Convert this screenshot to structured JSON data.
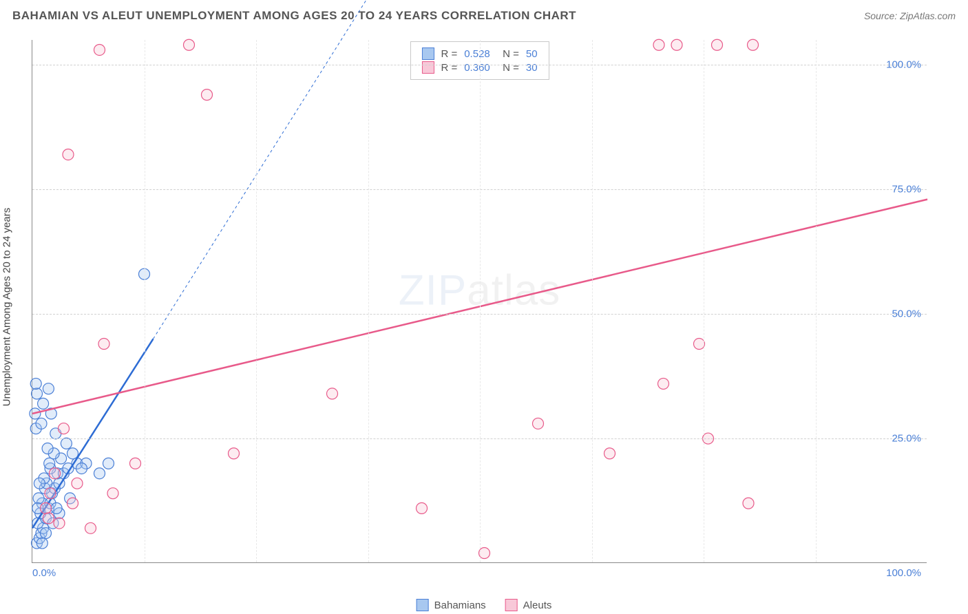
{
  "title": "BAHAMIAN VS ALEUT UNEMPLOYMENT AMONG AGES 20 TO 24 YEARS CORRELATION CHART",
  "source_label": "Source: ZipAtlas.com",
  "y_axis_label": "Unemployment Among Ages 20 to 24 years",
  "watermark_bold": "ZIP",
  "watermark_thin": "atlas",
  "chart": {
    "type": "scatter",
    "xlim": [
      0,
      100
    ],
    "ylim": [
      0,
      105
    ],
    "xticks": [
      0,
      100
    ],
    "xtick_labels": [
      "0.0%",
      "100.0%"
    ],
    "yticks": [
      25,
      50,
      75,
      100
    ],
    "ytick_labels": [
      "25.0%",
      "50.0%",
      "75.0%",
      "100.0%"
    ],
    "vgrid_positions": [
      12.5,
      25,
      37.5,
      50,
      62.5,
      75,
      87.5
    ],
    "background_color": "#ffffff",
    "grid_color": "#d0d0d0",
    "axis_color": "#888888",
    "marker_radius": 8,
    "series": [
      {
        "name": "Bahamians",
        "fill": "#a8c8f0",
        "stroke": "#4a7fd6",
        "trend_stroke": "#2d6cd4",
        "trend": {
          "x1": 0,
          "y1": 7,
          "x2": 13.5,
          "y2": 45,
          "dash_to_x": 45,
          "dash_to_y": 135
        },
        "stats": {
          "R": "0.528",
          "N": "50"
        },
        "points": [
          [
            0.5,
            4
          ],
          [
            0.8,
            5
          ],
          [
            1.0,
            6
          ],
          [
            1.2,
            7
          ],
          [
            0.6,
            8
          ],
          [
            1.5,
            9
          ],
          [
            0.9,
            10
          ],
          [
            1.8,
            11
          ],
          [
            1.1,
            12
          ],
          [
            2.0,
            12
          ],
          [
            0.7,
            13
          ],
          [
            2.2,
            14
          ],
          [
            1.4,
            15
          ],
          [
            2.5,
            15
          ],
          [
            1.6,
            16
          ],
          [
            3.0,
            16
          ],
          [
            1.3,
            17
          ],
          [
            2.8,
            18
          ],
          [
            3.5,
            18
          ],
          [
            2.0,
            19
          ],
          [
            4.0,
            19
          ],
          [
            1.9,
            20
          ],
          [
            5.0,
            20
          ],
          [
            3.2,
            21
          ],
          [
            6.0,
            20
          ],
          [
            2.4,
            22
          ],
          [
            4.5,
            22
          ],
          [
            7.5,
            18
          ],
          [
            1.7,
            23
          ],
          [
            3.8,
            24
          ],
          [
            8.5,
            20
          ],
          [
            2.6,
            26
          ],
          [
            0.4,
            27
          ],
          [
            1.0,
            28
          ],
          [
            5.5,
            19
          ],
          [
            0.3,
            30
          ],
          [
            2.1,
            30
          ],
          [
            1.2,
            32
          ],
          [
            0.5,
            34
          ],
          [
            1.8,
            35
          ],
          [
            0.4,
            36
          ],
          [
            12.5,
            58
          ],
          [
            2.3,
            8
          ],
          [
            3.0,
            10
          ],
          [
            1.5,
            6
          ],
          [
            4.2,
            13
          ],
          [
            0.8,
            16
          ],
          [
            2.7,
            11
          ],
          [
            1.1,
            4
          ],
          [
            0.6,
            11
          ]
        ]
      },
      {
        "name": "Aleuts",
        "fill": "#f8c8d8",
        "stroke": "#e85a8a",
        "trend_stroke": "#e85a8a",
        "trend": {
          "x1": 0,
          "y1": 30,
          "x2": 100,
          "y2": 73
        },
        "stats": {
          "R": "0.360",
          "N": "30"
        },
        "points": [
          [
            3.5,
            27
          ],
          [
            2.0,
            14
          ],
          [
            4.5,
            12
          ],
          [
            3.0,
            8
          ],
          [
            6.5,
            7
          ],
          [
            11.5,
            20
          ],
          [
            22.5,
            22
          ],
          [
            8.0,
            44
          ],
          [
            33.5,
            34
          ],
          [
            7.5,
            103
          ],
          [
            17.5,
            104
          ],
          [
            19.5,
            94
          ],
          [
            4.0,
            82
          ],
          [
            43.5,
            11
          ],
          [
            50.5,
            2
          ],
          [
            56.5,
            28
          ],
          [
            64.5,
            22
          ],
          [
            70.0,
            104
          ],
          [
            70.5,
            36
          ],
          [
            74.5,
            44
          ],
          [
            75.5,
            25
          ],
          [
            80.0,
            12
          ],
          [
            72.0,
            104
          ],
          [
            76.5,
            104
          ],
          [
            80.5,
            104
          ],
          [
            2.5,
            18
          ],
          [
            1.5,
            11
          ],
          [
            5.0,
            16
          ],
          [
            9.0,
            14
          ],
          [
            1.8,
            9
          ]
        ]
      }
    ]
  },
  "legend": {
    "items": [
      {
        "label": "Bahamians",
        "fill": "#a8c8f0",
        "stroke": "#4a7fd6"
      },
      {
        "label": "Aleuts",
        "fill": "#f8c8d8",
        "stroke": "#e85a8a"
      }
    ]
  },
  "colors": {
    "tick_text": "#4a7fd6",
    "title_text": "#555555",
    "source_text": "#777777"
  }
}
